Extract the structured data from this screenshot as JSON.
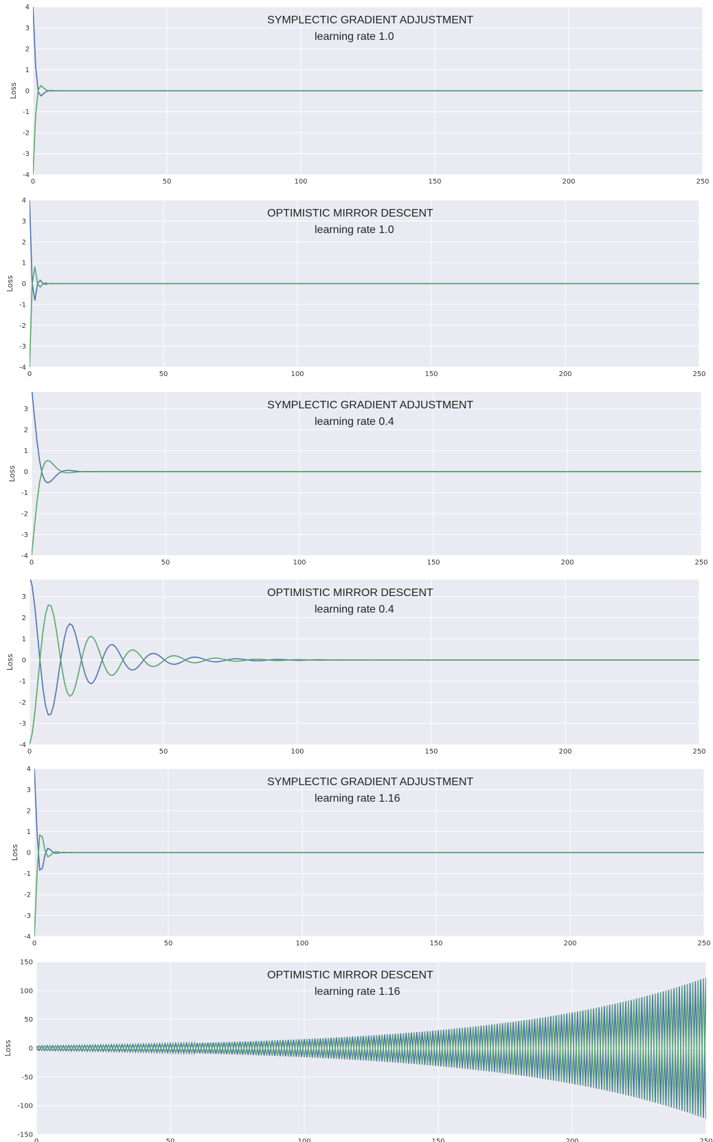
{
  "colors": {
    "panel_bg": "#eaeaf2",
    "grid": "#ffffff",
    "series_1": "#4c72b0",
    "series_2": "#55a868",
    "text": "#333333"
  },
  "chart_data": [
    {
      "type": "line",
      "title": "SYMPLECTIC GRADIENT ADJUSTMENT",
      "subtitle": "learning rate 1.0",
      "ylabel": "Loss",
      "xlim": [
        0,
        250
      ],
      "ylim": [
        -4,
        4
      ],
      "xticks": [
        0,
        50,
        100,
        150,
        200,
        250
      ],
      "yticks": [
        -4,
        -3,
        -2,
        -1,
        0,
        1,
        2,
        3,
        4
      ],
      "grid": true,
      "dynamics": {
        "x_end": 250,
        "series_1": {
          "amplitude": 4,
          "decay": 0.85,
          "period": 7.6,
          "start": "peak"
        },
        "series_2": {
          "amplitude": 4,
          "decay": 0.85,
          "period": 7.6,
          "start": "trough"
        }
      }
    },
    {
      "type": "line",
      "title": "OPTIMISTIC MIRROR DESCENT",
      "subtitle": "learning rate 1.0",
      "ylabel": "Loss",
      "xlim": [
        0,
        250
      ],
      "ylim": [
        -4,
        4
      ],
      "xticks": [
        0,
        50,
        100,
        150,
        200,
        250
      ],
      "yticks": [
        -4,
        -3,
        -2,
        -1,
        0,
        1,
        2,
        3,
        4
      ],
      "grid": true,
      "dynamics": {
        "x_end": 250,
        "series_1": {
          "amplitude": 4,
          "decay": 0.8,
          "period": 4,
          "start": "peak"
        },
        "series_2": {
          "amplitude": 4,
          "decay": 0.8,
          "period": 4,
          "start": "trough"
        }
      }
    },
    {
      "type": "line",
      "title": "SYMPLECTIC GRADIENT ADJUSTMENT",
      "subtitle": "learning rate 0.4",
      "ylabel": "Loss",
      "xlim": [
        0,
        250
      ],
      "ylim": [
        -4,
        3.8
      ],
      "xticks": [
        0,
        50,
        100,
        150,
        200,
        250
      ],
      "yticks": [
        -4,
        -3,
        -2,
        -1,
        0,
        1,
        2,
        3
      ],
      "grid": true,
      "dynamics": {
        "x_end": 250,
        "series_1": {
          "amplitude": 4,
          "decay": 0.3,
          "period": 15,
          "start": "peak"
        },
        "series_2": {
          "amplitude": 4,
          "decay": 0.3,
          "period": 15,
          "start": "trough"
        }
      }
    },
    {
      "type": "line",
      "title": "OPTIMISTIC MIRROR DESCENT",
      "subtitle": "learning rate 0.4",
      "ylabel": "Loss",
      "xlim": [
        0,
        250
      ],
      "ylim": [
        -4,
        3.8
      ],
      "xticks": [
        0,
        50,
        100,
        150,
        200,
        250
      ],
      "yticks": [
        -4,
        -3,
        -2,
        -1,
        0,
        1,
        2,
        3
      ],
      "grid": true,
      "dynamics": {
        "x_end": 250,
        "series_1": {
          "amplitude": 4,
          "decay": 0.055,
          "period": 15.5,
          "start": "peak"
        },
        "series_2": {
          "amplitude": 4,
          "decay": 0.055,
          "period": 15.5,
          "start": "trough"
        }
      }
    },
    {
      "type": "line",
      "title": "SYMPLECTIC GRADIENT ADJUSTMENT",
      "subtitle": "learning rate 1.16",
      "ylabel": "Loss",
      "xlim": [
        0,
        250
      ],
      "ylim": [
        -4,
        4
      ],
      "xticks": [
        0,
        50,
        100,
        150,
        200,
        250
      ],
      "yticks": [
        -4,
        -3,
        -2,
        -1,
        0,
        1,
        2,
        3,
        4
      ],
      "grid": true,
      "dynamics": {
        "x_end": 250,
        "series_1": {
          "amplitude": 4,
          "decay": 0.55,
          "period": 5.6,
          "start": "peak"
        },
        "series_2": {
          "amplitude": 4,
          "decay": 0.55,
          "period": 5.6,
          "start": "trough"
        }
      }
    },
    {
      "type": "line",
      "title": "OPTIMISTIC MIRROR DESCENT",
      "subtitle": "learning rate 1.16",
      "ylabel": "Loss",
      "xlim": [
        0,
        250
      ],
      "ylim": [
        -150,
        150
      ],
      "xticks": [
        0,
        50,
        100,
        150,
        200,
        250
      ],
      "yticks": [
        -150,
        -100,
        -50,
        0,
        50,
        100,
        150
      ],
      "grid": true,
      "dynamics": {
        "x_end": 250,
        "series_1": {
          "amplitude": 4,
          "growth": 0.0137,
          "period": 2,
          "start": "peak"
        },
        "series_2": {
          "amplitude": 4,
          "growth": 0.0137,
          "period": 2,
          "start": "trough"
        }
      }
    }
  ]
}
